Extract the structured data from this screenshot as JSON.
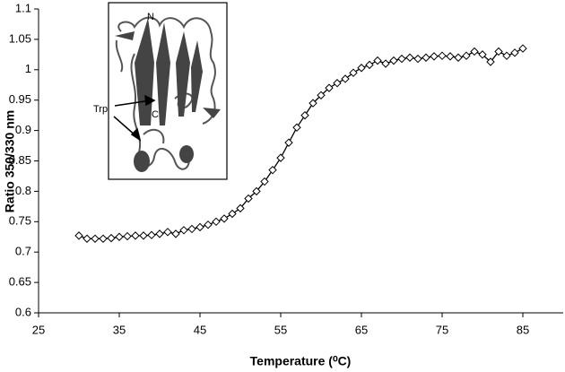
{
  "chart_data": {
    "type": "line",
    "x_label": "Temperature (⁰C)",
    "y_label": "Ratio 350/330 nm",
    "annotations": [
      "N",
      "C",
      "Trp"
    ],
    "x": [
      30,
      31,
      32,
      33,
      34,
      35,
      36,
      37,
      38,
      39,
      40,
      41,
      42,
      43,
      44,
      45,
      46,
      47,
      48,
      49,
      50,
      51,
      52,
      53,
      54,
      55,
      56,
      57,
      58,
      59,
      60,
      61,
      62,
      63,
      64,
      65,
      66,
      67,
      68,
      69,
      70,
      71,
      72,
      73,
      74,
      75,
      76,
      77,
      78,
      79,
      80,
      81,
      82,
      83,
      84,
      85
    ],
    "values": [
      0.727,
      0.722,
      0.722,
      0.722,
      0.723,
      0.725,
      0.726,
      0.727,
      0.727,
      0.728,
      0.73,
      0.733,
      0.73,
      0.736,
      0.738,
      0.741,
      0.745,
      0.75,
      0.755,
      0.763,
      0.772,
      0.788,
      0.8,
      0.816,
      0.835,
      0.855,
      0.88,
      0.905,
      0.925,
      0.945,
      0.958,
      0.97,
      0.978,
      0.985,
      0.995,
      1.003,
      1.008,
      1.015,
      1.01,
      1.015,
      1.018,
      1.02,
      1.018,
      1.02,
      1.022,
      1.023,
      1.022,
      1.02,
      1.023,
      1.03,
      1.025,
      1.013,
      1.03,
      1.023,
      1.028,
      1.035
    ],
    "color": "#000000",
    "xlim": [
      25,
      90
    ],
    "xticks": [
      25,
      35,
      45,
      55,
      65,
      75,
      85
    ],
    "ylim": [
      0.6,
      1.1
    ],
    "yticks": [
      0.6,
      0.65,
      0.7,
      0.75,
      0.8,
      0.85,
      0.9,
      0.95,
      1,
      1.05,
      1.1
    ],
    "grid": false
  }
}
